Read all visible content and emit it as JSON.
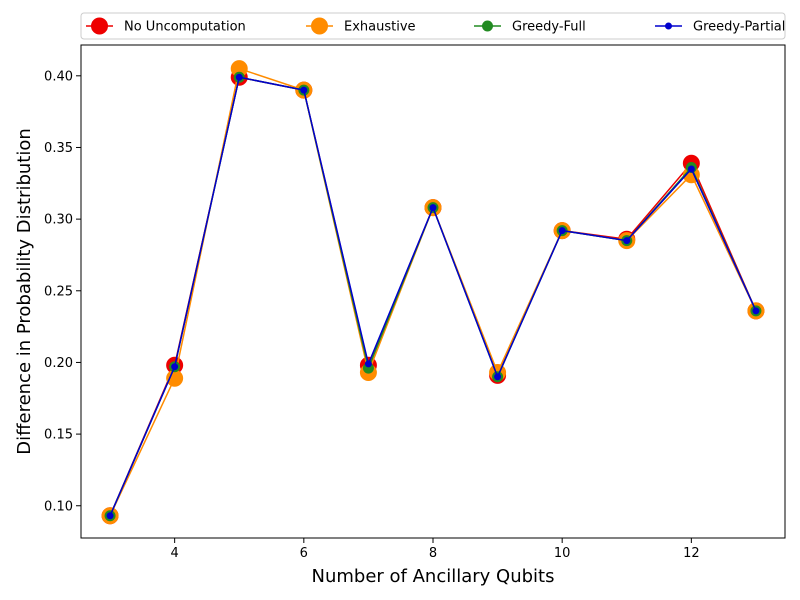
{
  "chart_data": {
    "type": "line",
    "title": "",
    "xlabel": "Number of Ancillary Qubits",
    "ylabel": "Difference in Probability Distribution",
    "xlim": [
      2.55,
      13.45
    ],
    "ylim": [
      0.0775,
      0.4215
    ],
    "xticks": [
      4,
      6,
      8,
      10,
      12
    ],
    "xtick_labels": [
      "4",
      "6",
      "8",
      "10",
      "12"
    ],
    "yticks": [
      0.1,
      0.15,
      0.2,
      0.25,
      0.3,
      0.35,
      0.4
    ],
    "ytick_labels": [
      "0.10",
      "0.15",
      "0.20",
      "0.25",
      "0.30",
      "0.35",
      "0.40"
    ],
    "grid": false,
    "legend_position": "top (above plot), single row",
    "x": [
      3,
      4,
      5,
      6,
      7,
      8,
      9,
      10,
      11,
      12,
      13
    ],
    "series": [
      {
        "name": "No Uncomputation",
        "color": "#ee0000",
        "marker": "large-circle",
        "values": [
          0.093,
          0.198,
          0.399,
          0.39,
          0.198,
          0.308,
          0.191,
          0.292,
          0.286,
          0.339,
          0.236
        ]
      },
      {
        "name": "Exhaustive",
        "color": "#ff8c00",
        "marker": "large-circle",
        "values": [
          0.093,
          0.189,
          0.405,
          0.39,
          0.193,
          0.308,
          0.193,
          0.292,
          0.285,
          0.331,
          0.236
        ]
      },
      {
        "name": "Greedy-Full",
        "color": "#228b22",
        "marker": "medium-circle",
        "values": [
          0.093,
          0.197,
          0.399,
          0.39,
          0.196,
          0.308,
          0.19,
          0.292,
          0.285,
          0.336,
          0.236
        ]
      },
      {
        "name": "Greedy-Partial",
        "color": "#0000cd",
        "marker": "small-circle",
        "values": [
          0.093,
          0.197,
          0.399,
          0.39,
          0.199,
          0.308,
          0.19,
          0.292,
          0.285,
          0.335,
          0.236
        ]
      }
    ]
  }
}
